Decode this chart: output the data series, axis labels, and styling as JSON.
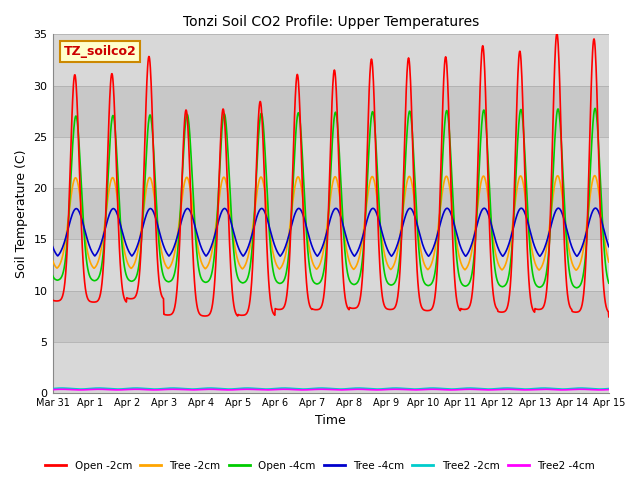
{
  "title": "Tonzi Soil CO2 Profile: Upper Temperatures",
  "xlabel": "Time",
  "ylabel": "Soil Temperature (C)",
  "ylim": [
    0,
    35
  ],
  "yticks": [
    0,
    5,
    10,
    15,
    20,
    25,
    30,
    35
  ],
  "xtick_labels": [
    "Mar 31",
    "Apr 1",
    "Apr 2",
    "Apr 3",
    "Apr 4",
    "Apr 5",
    "Apr 6",
    "Apr 7",
    "Apr 8",
    "Apr 9",
    "Apr 10",
    "Apr 11",
    "Apr 12",
    "Apr 13",
    "Apr 14",
    "Apr 15"
  ],
  "legend_entries": [
    {
      "label": "Open -2cm",
      "color": "#ff0000"
    },
    {
      "label": "Tree -2cm",
      "color": "#ffa500"
    },
    {
      "label": "Open -4cm",
      "color": "#00cc00"
    },
    {
      "label": "Tree -4cm",
      "color": "#0000cc"
    },
    {
      "label": "Tree2 -2cm",
      "color": "#00cccc"
    },
    {
      "label": "Tree2 -4cm",
      "color": "#ff00ff"
    }
  ],
  "annotation_box": {
    "text": "TZ_soilco2",
    "facecolor": "#ffffcc",
    "edgecolor": "#cc8800",
    "textcolor": "#cc0000",
    "fontsize": 9,
    "fontweight": "bold"
  },
  "bg_color": "#d8d8d8",
  "grid_color": "#bbbbbb",
  "figsize": [
    6.4,
    4.8
  ],
  "dpi": 100
}
